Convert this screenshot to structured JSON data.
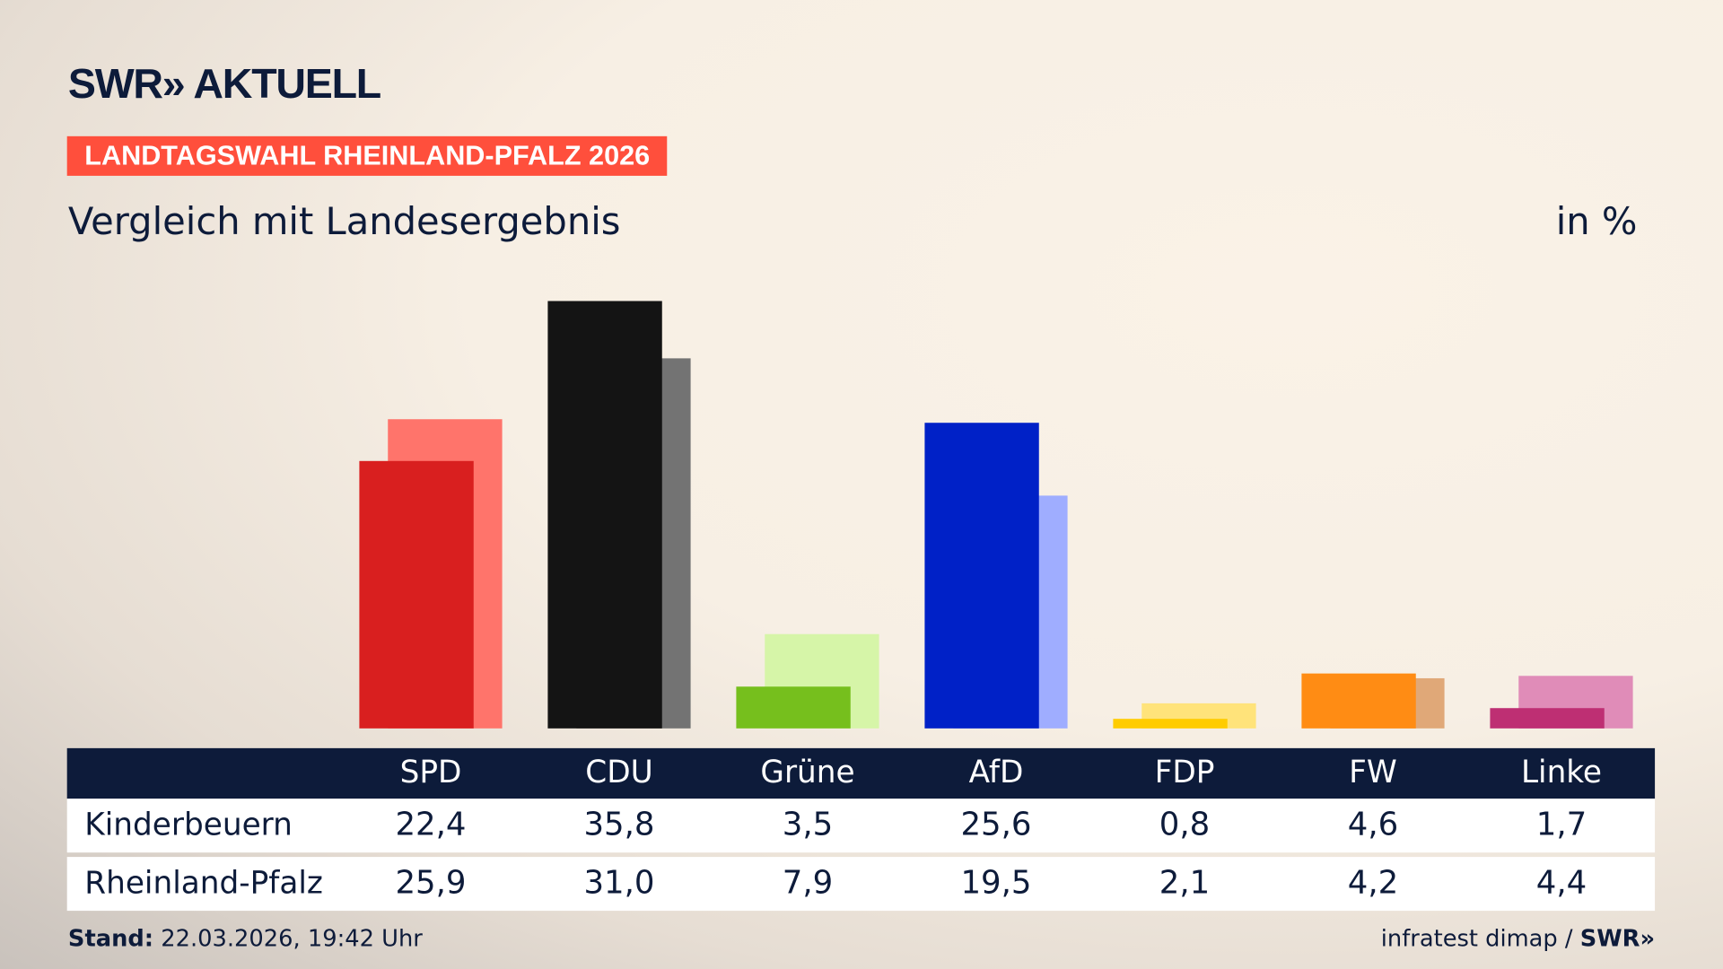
{
  "header": {
    "logo": "SWR» AKTUELL",
    "kicker": "LANDTAGSWAHL RHEINLAND-PFALZ 2026",
    "subtitle": "Vergleich mit Landesergebnis",
    "unit": "in %"
  },
  "chart_data": {
    "type": "bar",
    "categories": [
      "SPD",
      "CDU",
      "Grüne",
      "AfD",
      "FDP",
      "FW",
      "Linke"
    ],
    "series": [
      {
        "name": "Kinderbeuern",
        "values": [
          22.4,
          35.8,
          3.5,
          25.6,
          0.8,
          4.6,
          1.7
        ],
        "display": [
          "22,4",
          "35,8",
          "3,5",
          "25,6",
          "0,8",
          "4,6",
          "1,7"
        ],
        "colors": [
          "#d91f1f",
          "#141414",
          "#76bf1d",
          "#0021c7",
          "#ffcc00",
          "#ff8c14",
          "#be2f73"
        ]
      },
      {
        "name": "Rheinland-Pfalz",
        "values": [
          25.9,
          31.0,
          7.9,
          19.5,
          2.1,
          4.2,
          4.4
        ],
        "display": [
          "25,9",
          "31,0",
          "7,9",
          "19,5",
          "2,1",
          "4,2",
          "4,4"
        ],
        "colors": [
          "#ff746b",
          "#737373",
          "#d6f5a8",
          "#9fadff",
          "#ffe37a",
          "#e0a878",
          "#e08cb8"
        ]
      }
    ],
    "ylim": [
      0,
      36
    ]
  },
  "footer": {
    "stand_label": "Stand:",
    "stand_value": "22.03.2026, 19:42 Uhr",
    "source": "infratest dimap / ",
    "source_logo": "SWR»"
  }
}
